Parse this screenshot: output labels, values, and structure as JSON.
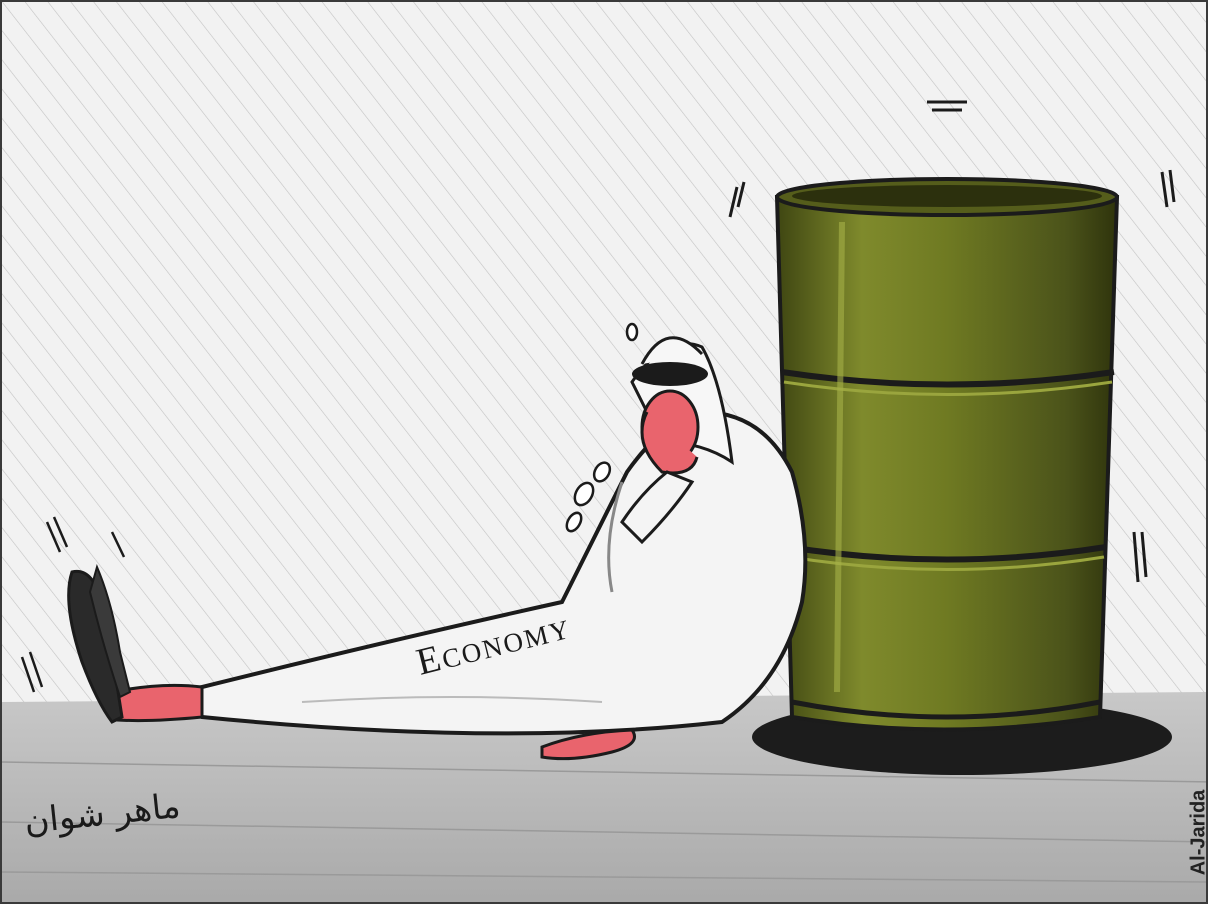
{
  "cartoon": {
    "label_text": "Economy",
    "signature_text": "ماهر شوان",
    "credit_text": "Al-Jarida"
  },
  "colors": {
    "background": "#f2f2f2",
    "floor": "#b9b9b9",
    "barrel": "#6f7a22",
    "barrel_dark": "#3f4612",
    "robe": "#f4f4f4",
    "skin": "#e9646d",
    "outline": "#1b1b1b"
  },
  "icons": [
    "oil-barrel-icon",
    "crying-man-figure"
  ]
}
